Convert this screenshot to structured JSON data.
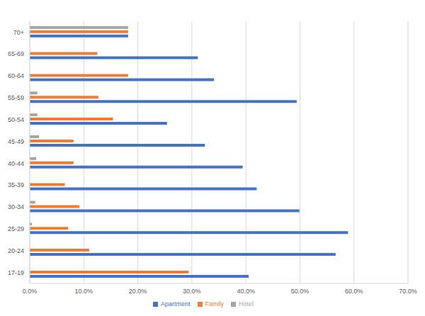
{
  "chart_data": {
    "type": "bar",
    "orientation": "horizontal",
    "grid": true,
    "legend": "bottom",
    "categories": [
      "17-19",
      "20-24",
      "25-29",
      "30-34",
      "35-39",
      "40-44",
      "45-49",
      "50-54",
      "55-59",
      "60-64",
      "65-69",
      "70+"
    ],
    "series": [
      {
        "name": "Hotel",
        "color": "#a5a5a5",
        "values": [
          0,
          0,
          0.4,
          1.0,
          0,
          1.2,
          1.7,
          1.4,
          1.4,
          0,
          0,
          18.2
        ]
      },
      {
        "name": "Family",
        "color": "#ed7d31",
        "values": [
          29.4,
          11.0,
          7.1,
          9.2,
          6.5,
          8.1,
          8.1,
          15.4,
          12.7,
          18.2,
          12.5,
          18.2
        ]
      },
      {
        "name": "Apartment",
        "color": "#4472c4",
        "values": [
          40.5,
          56.6,
          58.9,
          49.9,
          42.0,
          39.4,
          32.4,
          25.4,
          49.4,
          34.1,
          31.1,
          18.2
        ]
      }
    ],
    "xlim": [
      0,
      70
    ],
    "xticks": [
      {
        "value": 0,
        "label": "0.0%"
      },
      {
        "value": 10,
        "label": "10.0%"
      },
      {
        "value": 20,
        "label": "20.0%"
      },
      {
        "value": 30,
        "label": "30.0%"
      },
      {
        "value": 40,
        "label": "40.0%"
      },
      {
        "value": 50,
        "label": "50.0%"
      },
      {
        "value": 60,
        "label": "60.0%"
      },
      {
        "value": 70,
        "label": "70.0%"
      }
    ]
  }
}
